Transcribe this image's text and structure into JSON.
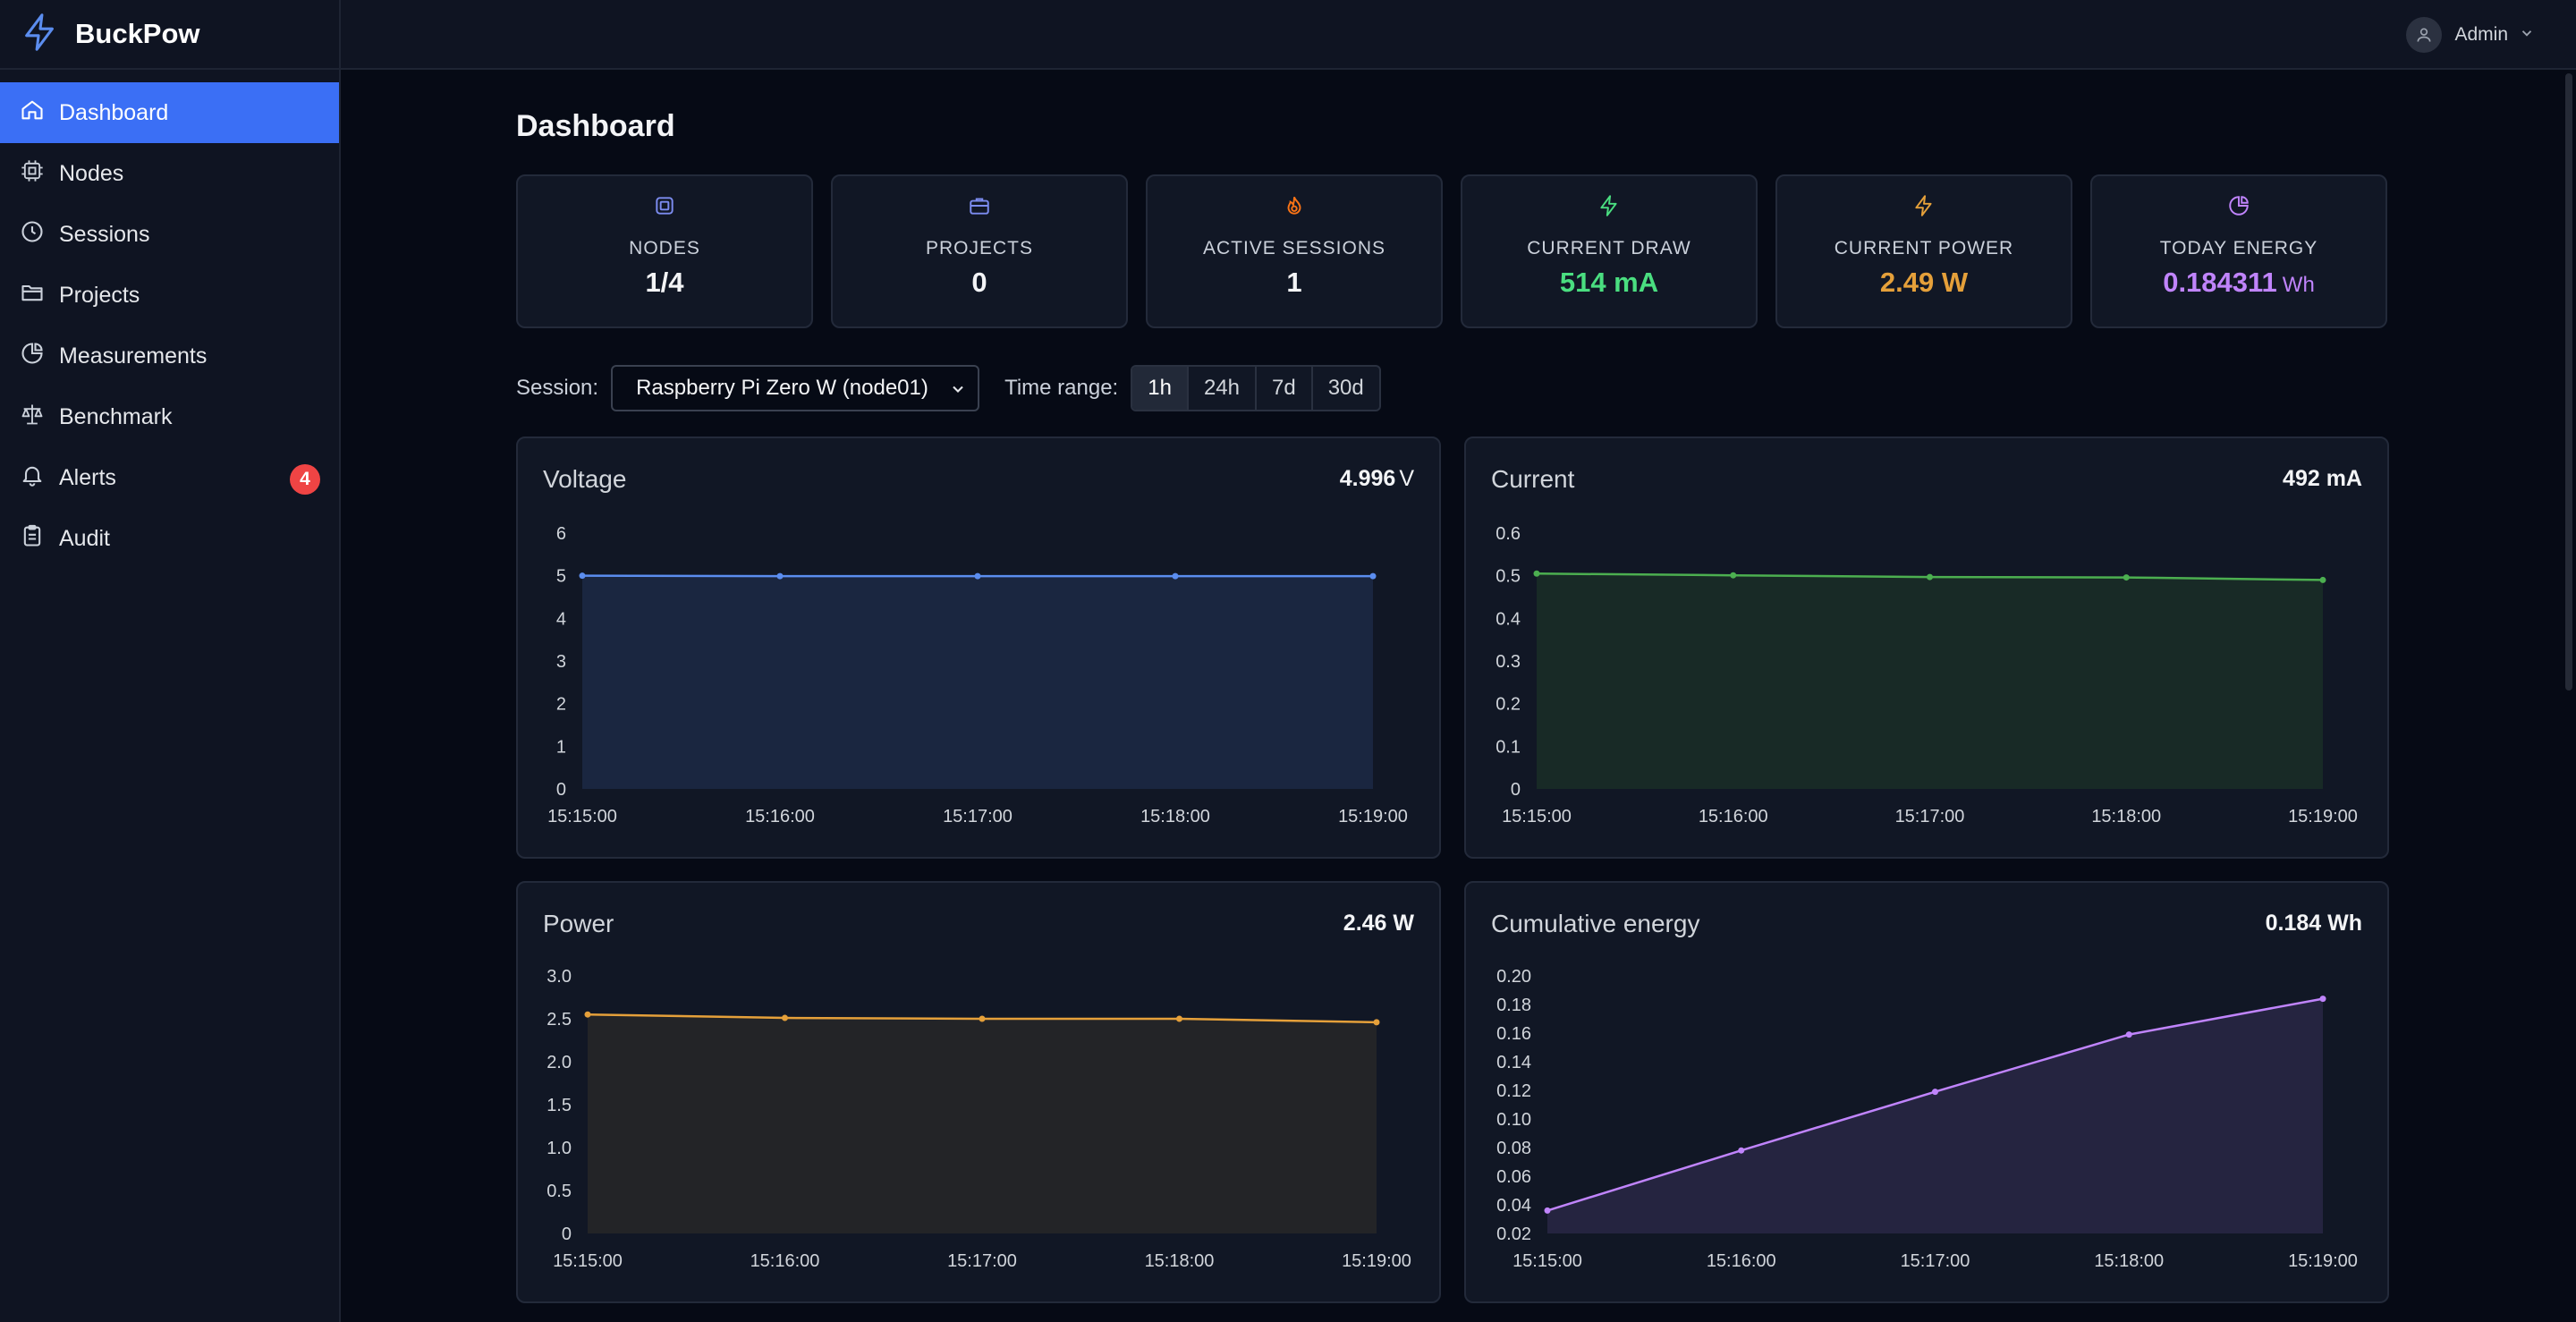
{
  "brand": {
    "name": "BuckPow",
    "logo_icon": "bolt-icon",
    "accent": "#3b6ff5"
  },
  "sidebar": {
    "items": [
      {
        "label": "Dashboard",
        "icon": "home-icon",
        "active": true
      },
      {
        "label": "Nodes",
        "icon": "cpu-icon"
      },
      {
        "label": "Sessions",
        "icon": "clock-icon"
      },
      {
        "label": "Projects",
        "icon": "folder-icon"
      },
      {
        "label": "Measurements",
        "icon": "pie-chart-icon"
      },
      {
        "label": "Benchmark",
        "icon": "scale-icon"
      },
      {
        "label": "Alerts",
        "icon": "bell-icon",
        "badge": "4"
      },
      {
        "label": "Audit",
        "icon": "clipboard-icon"
      }
    ]
  },
  "header": {
    "user": "Admin"
  },
  "page": {
    "title": "Dashboard"
  },
  "stats": [
    {
      "label": "NODES",
      "value": "1/4",
      "unit": "",
      "icon": "chip-icon",
      "color": "#f3f4f6"
    },
    {
      "label": "PROJECTS",
      "value": "0",
      "unit": "",
      "icon": "briefcase-icon",
      "color": "#f3f4f6"
    },
    {
      "label": "ACTIVE SESSIONS",
      "value": "1",
      "unit": "",
      "icon": "flame-icon",
      "color": "#f3f4f6"
    },
    {
      "label": "CURRENT DRAW",
      "value": "514 mA",
      "unit": "",
      "icon": "bolt-icon",
      "color": "#4ade80"
    },
    {
      "label": "CURRENT POWER",
      "value": "2.49 W",
      "unit": "",
      "icon": "bolt-icon",
      "color": "#e5a03a"
    },
    {
      "label": "TODAY ENERGY",
      "value": "0.184311",
      "unit": "Wh",
      "icon": "pie-chart-icon",
      "color": "#c084fc"
    }
  ],
  "filters": {
    "session_label": "Session:",
    "session_value": "Raspberry Pi Zero W (node01)",
    "range_label": "Time range:",
    "ranges": [
      "1h",
      "24h",
      "7d",
      "30d"
    ],
    "active_range": "1h"
  },
  "cards": [
    {
      "title": "Voltage",
      "value": "4.996",
      "unit": "V"
    },
    {
      "title": "Current",
      "value": "492 mA",
      "unit": ""
    },
    {
      "title": "Power",
      "value": "2.46 W",
      "unit": ""
    },
    {
      "title": "Cumulative energy",
      "value": "0.184 Wh",
      "unit": ""
    }
  ],
  "chart_data": [
    {
      "type": "area",
      "title": "Voltage",
      "x": [
        "15:15:00",
        "15:16:00",
        "15:17:00",
        "15:18:00",
        "15:19:00"
      ],
      "series": [
        {
          "values": [
            5.0,
            4.99,
            4.99,
            4.99,
            4.99
          ]
        }
      ],
      "ylim": [
        0,
        6
      ],
      "yticks": [
        "0",
        "1",
        "2",
        "3",
        "4",
        "5",
        "6"
      ],
      "color": "#5b8def",
      "fill": "#1a2640"
    },
    {
      "type": "area",
      "title": "Current",
      "x": [
        "15:15:00",
        "15:16:00",
        "15:17:00",
        "15:18:00",
        "15:19:00"
      ],
      "series": [
        {
          "values": [
            0.505,
            0.501,
            0.497,
            0.496,
            0.49
          ]
        }
      ],
      "ylim": [
        0,
        0.6
      ],
      "yticks": [
        "0",
        "0.1",
        "0.2",
        "0.3",
        "0.4",
        "0.5",
        "0.6"
      ],
      "color": "#4caf50",
      "fill": "#182a26"
    },
    {
      "type": "area",
      "title": "Power",
      "x": [
        "15:15:00",
        "15:16:00",
        "15:17:00",
        "15:18:00",
        "15:19:00"
      ],
      "series": [
        {
          "values": [
            2.55,
            2.51,
            2.5,
            2.5,
            2.46
          ]
        }
      ],
      "ylim": [
        0,
        3
      ],
      "yticks": [
        "0",
        "0.5",
        "1.0",
        "1.5",
        "2.0",
        "2.5",
        "3.0"
      ],
      "color": "#e5a03a",
      "fill": "#232427"
    },
    {
      "type": "area",
      "title": "Cumulative energy",
      "x": [
        "15:15:00",
        "15:16:00",
        "15:17:00",
        "15:18:00",
        "15:19:00"
      ],
      "series": [
        {
          "values": [
            0.036,
            0.078,
            0.119,
            0.159,
            0.184
          ]
        }
      ],
      "ylim": [
        0.02,
        0.2
      ],
      "yticks": [
        "0.02",
        "0.04",
        "0.06",
        "0.08",
        "0.10",
        "0.12",
        "0.14",
        "0.16",
        "0.18",
        "0.20"
      ],
      "color": "#c084fc",
      "fill": "#252440"
    }
  ]
}
